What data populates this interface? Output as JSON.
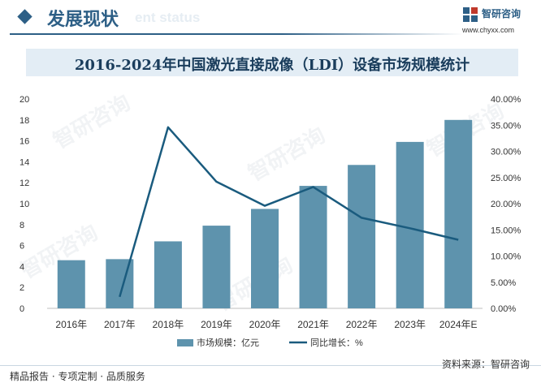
{
  "header": {
    "title": "发展现状",
    "subtitle": "ent status",
    "logo_name": "智研咨询",
    "logo_url": "www.chyxx.com"
  },
  "watermark": "智研咨询",
  "footer": {
    "left": "精品报告 · 专项定制 · 品质服务",
    "source": "资料来源：智研咨询"
  },
  "colors": {
    "bar": "#5e93ad",
    "line": "#1a5b7e",
    "brand": "#2d5f86"
  },
  "chart_data": {
    "type": "bar",
    "title": "2016-2024年中国激光直接成像（LDI）设备市场规模统计",
    "categories": [
      "2016年",
      "2017年",
      "2018年",
      "2019年",
      "2020年",
      "2021年",
      "2022年",
      "2023年",
      "2024年E"
    ],
    "series": [
      {
        "name": "市场规模：亿元",
        "type": "bar",
        "axis": "left",
        "values": [
          4.6,
          4.7,
          6.4,
          7.9,
          9.5,
          11.7,
          13.7,
          15.9,
          18.0
        ]
      },
      {
        "name": "同比增长：%",
        "type": "line",
        "axis": "right",
        "values": [
          null,
          2.2,
          34.6,
          24.2,
          19.6,
          23.2,
          17.3,
          15.3,
          13.1
        ]
      }
    ],
    "y_left": {
      "min": 0,
      "max": 20,
      "ticks": [
        "0",
        "2",
        "4",
        "6",
        "8",
        "10",
        "12",
        "14",
        "16",
        "18",
        "20"
      ]
    },
    "y_right": {
      "min": 0,
      "max": 40,
      "ticks": [
        "0.00%",
        "5.00%",
        "10.00%",
        "15.00%",
        "20.00%",
        "25.00%",
        "30.00%",
        "35.00%",
        "40.00%"
      ]
    },
    "legend_position": "bottom",
    "grid": false
  }
}
